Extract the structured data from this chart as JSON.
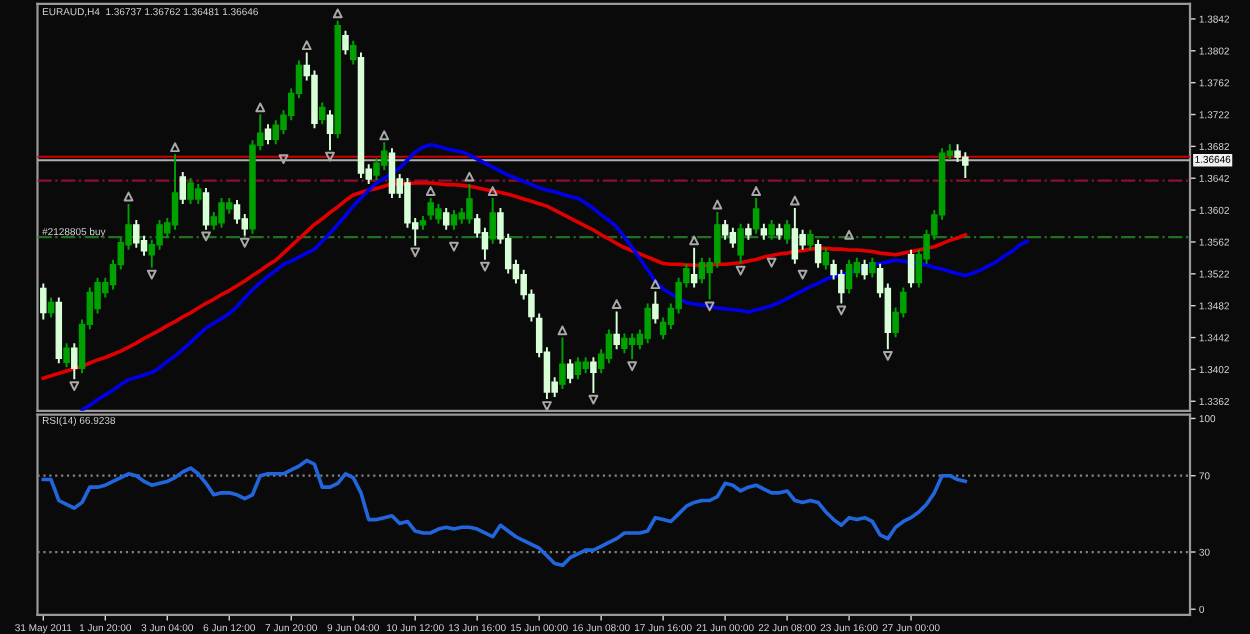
{
  "chart_data": [
    {
      "type": "candlestick",
      "title": "EURAUD,H4  1.36737 1.36762 1.36481 1.36646",
      "categories": [
        null,
        null,
        null,
        null,
        null,
        null,
        null,
        null,
        null,
        null,
        null,
        null,
        null,
        null,
        null,
        null,
        null,
        null,
        null,
        null,
        null,
        null,
        null,
        null,
        null,
        null,
        null,
        null,
        null,
        null,
        null,
        null,
        null,
        null,
        null,
        null,
        null,
        null,
        null,
        null,
        null,
        null,
        null,
        null,
        null,
        null,
        null,
        null,
        null,
        null,
        null,
        null,
        null,
        null,
        null,
        null,
        null,
        null,
        null,
        null,
        null,
        null,
        null,
        null,
        null,
        null,
        null,
        null,
        null,
        null,
        null,
        null,
        null,
        null,
        null,
        null,
        null,
        null,
        null,
        null,
        null,
        null,
        null,
        null,
        null,
        null,
        null,
        null,
        null,
        null,
        null,
        null,
        null,
        null,
        null,
        null,
        null,
        null,
        null,
        null,
        null,
        null,
        null,
        null,
        null,
        null,
        null,
        null,
        null,
        null,
        null,
        null,
        null,
        null,
        null,
        null,
        null,
        null,
        null,
        null,
        null,
        null,
        null,
        null,
        null,
        null,
        null,
        null
      ],
      "ohlc": [
        [
          1.35035,
          1.35085,
          1.3466,
          1.34735
        ],
        [
          1.34735,
          1.3491,
          1.34685,
          1.3486
        ],
        [
          1.3486,
          1.3491,
          1.3411,
          1.3416
        ],
        [
          1.3411,
          1.34335,
          1.3406,
          1.34285
        ],
        [
          1.34285,
          1.34335,
          1.3391,
          1.34035
        ],
        [
          1.34035,
          1.34635,
          1.33985,
          1.34585
        ],
        [
          1.34585,
          1.35035,
          1.34535,
          1.34985
        ],
        [
          1.34785,
          1.3516,
          1.34735,
          1.3511
        ],
        [
          1.34985,
          1.3516,
          1.34935,
          1.3511
        ],
        [
          1.35085,
          1.35385,
          1.35035,
          1.35335
        ],
        [
          1.35335,
          1.3566,
          1.35285,
          1.3561
        ],
        [
          1.35585,
          1.36085,
          1.35535,
          1.35835
        ],
        [
          1.35835,
          1.35885,
          1.3556,
          1.3561
        ],
        [
          1.35635,
          1.35685,
          1.3546,
          1.3551
        ],
        [
          1.3546,
          1.35635,
          1.3531,
          1.35585
        ],
        [
          1.35585,
          1.35885,
          1.35535,
          1.35835
        ],
        [
          1.35735,
          1.3591,
          1.35685,
          1.3586
        ],
        [
          1.35835,
          1.3671,
          1.35785,
          1.36235
        ],
        [
          1.36435,
          1.36485,
          1.3611,
          1.3616
        ],
        [
          1.3616,
          1.3641,
          1.3611,
          1.3636
        ],
        [
          1.3616,
          1.36335,
          1.3611,
          1.36285
        ],
        [
          1.36235,
          1.36285,
          1.35785,
          1.35835
        ],
        [
          1.35835,
          1.35985,
          1.35785,
          1.35935
        ],
        [
          1.3586,
          1.3616,
          1.3581,
          1.3611
        ],
        [
          1.36035,
          1.3616,
          1.35985,
          1.3611
        ],
        [
          1.36085,
          1.36135,
          1.3586,
          1.3591
        ],
        [
          1.3591,
          1.3596,
          1.3571,
          1.35785
        ],
        [
          1.35785,
          1.36885,
          1.35735,
          1.36835
        ],
        [
          1.36835,
          1.3721,
          1.36785,
          1.36985
        ],
        [
          1.37035,
          1.37085,
          1.3686,
          1.3691
        ],
        [
          1.3691,
          1.37135,
          1.3686,
          1.37085
        ],
        [
          1.37035,
          1.3726,
          1.36985,
          1.3721
        ],
        [
          1.3721,
          1.37535,
          1.3716,
          1.37485
        ],
        [
          1.37485,
          1.37885,
          1.37435,
          1.37835
        ],
        [
          1.37835,
          1.37985,
          1.3766,
          1.3771
        ],
        [
          1.3771,
          1.3776,
          1.3706,
          1.3711
        ],
        [
          1.3716,
          1.3736,
          1.3711,
          1.3731
        ],
        [
          1.3721,
          1.3726,
          1.36785,
          1.36985
        ],
        [
          1.36985,
          1.38385,
          1.36935,
          1.38335
        ],
        [
          1.3821,
          1.3826,
          1.37985,
          1.38035
        ],
        [
          1.3791,
          1.38135,
          1.3786,
          1.38085
        ],
        [
          1.37935,
          1.37985,
          1.36435,
          1.36485
        ],
        [
          1.36535,
          1.36585,
          1.3636,
          1.3641
        ],
        [
          1.3646,
          1.3666,
          1.3641,
          1.3661
        ],
        [
          1.36585,
          1.3686,
          1.36535,
          1.3676
        ],
        [
          1.36735,
          1.36785,
          1.36185,
          1.36235
        ],
        [
          1.3641,
          1.3646,
          1.36185,
          1.36235
        ],
        [
          1.3636,
          1.3641,
          1.3581,
          1.3586
        ],
        [
          1.3586,
          1.3591,
          1.35585,
          1.35785
        ],
        [
          1.35835,
          1.35935,
          1.35785,
          1.35885
        ],
        [
          1.3596,
          1.3616,
          1.3591,
          1.3611
        ],
        [
          1.3591,
          1.36085,
          1.3586,
          1.36035
        ],
        [
          1.35985,
          1.36035,
          1.35785,
          1.35835
        ],
        [
          1.35835,
          1.3601,
          1.35785,
          1.3596
        ],
        [
          1.3591,
          1.36035,
          1.3586,
          1.35985
        ],
        [
          1.3591,
          1.36335,
          1.3586,
          1.3616
        ],
        [
          1.3591,
          1.3596,
          1.35685,
          1.35735
        ],
        [
          1.35735,
          1.35785,
          1.3541,
          1.35535
        ],
        [
          1.3566,
          1.3616,
          1.3561,
          1.35985
        ],
        [
          1.35985,
          1.36035,
          1.3561,
          1.3566
        ],
        [
          1.3566,
          1.3571,
          1.35235,
          1.35285
        ],
        [
          1.35335,
          1.35385,
          1.3511,
          1.3516
        ],
        [
          1.3521,
          1.3526,
          1.3491,
          1.3496
        ],
        [
          1.3496,
          1.3501,
          1.34635,
          1.34685
        ],
        [
          1.3466,
          1.3471,
          1.34185,
          1.34235
        ],
        [
          1.34235,
          1.34285,
          1.3366,
          1.33735
        ],
        [
          1.3386,
          1.3391,
          1.33685,
          1.33735
        ],
        [
          1.33835,
          1.3441,
          1.33785,
          1.34085
        ],
        [
          1.34085,
          1.34135,
          1.3386,
          1.3391
        ],
        [
          1.3396,
          1.3416,
          1.3391,
          1.3411
        ],
        [
          1.34035,
          1.3416,
          1.33985,
          1.3411
        ],
        [
          1.3411,
          1.3416,
          1.33735,
          1.33985
        ],
        [
          1.34035,
          1.3426,
          1.33985,
          1.3421
        ],
        [
          1.3416,
          1.3451,
          1.3411,
          1.3446
        ],
        [
          1.3446,
          1.34735,
          1.34285,
          1.34335
        ],
        [
          1.34285,
          1.3446,
          1.34235,
          1.3441
        ],
        [
          1.34335,
          1.3446,
          1.3416,
          1.3441
        ],
        [
          1.34335,
          1.3451,
          1.34285,
          1.3446
        ],
        [
          1.3441,
          1.34835,
          1.3436,
          1.34785
        ],
        [
          1.34835,
          1.34985,
          1.3461,
          1.3466
        ],
        [
          1.3446,
          1.3466,
          1.3441,
          1.3461
        ],
        [
          1.34585,
          1.34835,
          1.34535,
          1.34785
        ],
        [
          1.34785,
          1.3516,
          1.34735,
          1.3511
        ],
        [
          1.3511,
          1.35335,
          1.3506,
          1.35285
        ],
        [
          1.3521,
          1.35535,
          1.3506,
          1.3511
        ],
        [
          1.3516,
          1.3541,
          1.3511,
          1.3536
        ],
        [
          1.35235,
          1.3541,
          1.3491,
          1.3536
        ],
        [
          1.3536,
          1.35985,
          1.3531,
          1.35835
        ],
        [
          1.35835,
          1.35885,
          1.3566,
          1.3571
        ],
        [
          1.35735,
          1.35785,
          1.3556,
          1.3561
        ],
        [
          1.3546,
          1.35835,
          1.3536,
          1.35785
        ],
        [
          1.35785,
          1.35835,
          1.3566,
          1.3571
        ],
        [
          1.35785,
          1.3616,
          1.35735,
          1.36035
        ],
        [
          1.35785,
          1.35835,
          1.3566,
          1.3571
        ],
        [
          1.3571,
          1.35885,
          1.3566,
          1.35835
        ],
        [
          1.35785,
          1.35835,
          1.3566,
          1.3571
        ],
        [
          1.3566,
          1.35885,
          1.3561,
          1.35835
        ],
        [
          1.35785,
          1.36035,
          1.3536,
          1.3541
        ],
        [
          1.3571,
          1.3576,
          1.35535,
          1.35585
        ],
        [
          1.35585,
          1.3576,
          1.35535,
          1.3571
        ],
        [
          1.35585,
          1.35635,
          1.3531,
          1.3536
        ],
        [
          1.35335,
          1.35535,
          1.35285,
          1.35485
        ],
        [
          1.35335,
          1.35385,
          1.3516,
          1.3521
        ],
        [
          1.3521,
          1.3526,
          1.3486,
          1.34985
        ],
        [
          1.35035,
          1.35385,
          1.34985,
          1.35335
        ],
        [
          1.35235,
          1.3541,
          1.35185,
          1.3536
        ],
        [
          1.35335,
          1.35385,
          1.3516,
          1.3521
        ],
        [
          1.35235,
          1.3541,
          1.35185,
          1.3536
        ],
        [
          1.35285,
          1.35335,
          1.34935,
          1.34985
        ],
        [
          1.35035,
          1.35085,
          1.34285,
          1.34485
        ],
        [
          1.34485,
          1.34785,
          1.34435,
          1.34735
        ],
        [
          1.34735,
          1.35035,
          1.34685,
          1.34985
        ],
        [
          1.3546,
          1.3551,
          1.3506,
          1.3511
        ],
        [
          1.3511,
          1.3551,
          1.3506,
          1.3546
        ],
        [
          1.3541,
          1.3576,
          1.3536,
          1.3571
        ],
        [
          1.3571,
          1.3601,
          1.3566,
          1.3596
        ],
        [
          1.3596,
          1.36785,
          1.3591,
          1.36735
        ],
        [
          1.3671,
          1.36835,
          1.3666,
          1.3676
        ],
        [
          1.3676,
          1.36835,
          1.36635,
          1.36685
        ],
        [
          1.36685,
          1.36735,
          1.36435,
          1.36585
        ],
        null,
        null,
        null,
        null,
        null,
        null,
        null,
        null
      ],
      "colors": [
        "#d8ffd8",
        "#00a000",
        "#d8ffd8",
        "#00a000",
        "#d8ffd8",
        "#00a000",
        "#00a000",
        "#00a000",
        "#00a000",
        "#00a000",
        "#00a000",
        "#00a000",
        "#d8ffd8",
        "#d8ffd8",
        "#00a000",
        "#00a000",
        "#00a000",
        "#00a000",
        "#d8ffd8",
        "#00a000",
        "#00a000",
        "#d8ffd8",
        "#00a000",
        "#00a000",
        "#00a000",
        "#d8ffd8",
        "#d8ffd8",
        "#00a000",
        "#00a000",
        "#d8ffd8",
        "#00a000",
        "#00a000",
        "#00a000",
        "#00a000",
        "#d8ffd8",
        "#d8ffd8",
        "#00a000",
        "#d8ffd8",
        "#00a000",
        "#d8ffd8",
        "#00a000",
        "#d8ffd8",
        "#d8ffd8",
        "#00a000",
        "#00a000",
        "#d8ffd8",
        "#d8ffd8",
        "#d8ffd8",
        "#d8ffd8",
        "#00a000",
        "#00a000",
        "#00a000",
        "#d8ffd8",
        "#00a000",
        "#00a000",
        "#00a000",
        "#d8ffd8",
        "#d8ffd8",
        "#00a000",
        "#d8ffd8",
        "#d8ffd8",
        "#d8ffd8",
        "#d8ffd8",
        "#d8ffd8",
        "#d8ffd8",
        "#d8ffd8",
        "#d8ffd8",
        "#00a000",
        "#d8ffd8",
        "#00a000",
        "#00a000",
        "#d8ffd8",
        "#00a000",
        "#00a000",
        "#d8ffd8",
        "#00a000",
        "#00a000",
        "#00a000",
        "#00a000",
        "#d8ffd8",
        "#00a000",
        "#00a000",
        "#00a000",
        "#00a000",
        "#d8ffd8",
        "#00a000",
        "#00a000",
        "#00a000",
        "#d8ffd8",
        "#d8ffd8",
        "#00a000",
        "#d8ffd8",
        "#00a000",
        "#d8ffd8",
        "#00a000",
        "#d8ffd8",
        "#00a000",
        "#d8ffd8",
        "#d8ffd8",
        "#00a000",
        "#d8ffd8",
        "#00a000",
        "#d8ffd8",
        "#d8ffd8",
        "#00a000",
        "#00a000",
        "#d8ffd8",
        "#00a000",
        "#d8ffd8",
        "#d8ffd8",
        "#00a000",
        "#00a000",
        "#d8ffd8",
        "#00a000",
        "#00a000",
        "#00a000",
        "#00a000",
        "#00a000",
        "#d8ffd8",
        "#d8ffd8",
        null,
        null,
        null,
        null,
        null,
        null,
        null,
        null
      ],
      "series": [
        {
          "type": "line",
          "color": "#e00000",
          "values": [
            1.3391,
            1.3394,
            1.3397,
            1.34,
            1.3403,
            1.3406,
            1.341,
            1.3414,
            1.3417,
            1.3421,
            1.3425,
            1.343,
            1.3435,
            1.3441,
            1.3446,
            1.3451,
            1.3457,
            1.3462,
            1.3468,
            1.3473,
            1.3479,
            1.3485,
            1.349,
            1.3496,
            1.3501,
            1.3507,
            1.3513,
            1.352,
            1.3526,
            1.3533,
            1.3539,
            1.3548,
            1.3557,
            1.3566,
            1.3575,
            1.3584,
            1.3591,
            1.3599,
            1.3606,
            1.3614,
            1.3621,
            1.3624,
            1.3627,
            1.3629,
            1.3632,
            1.3635,
            1.3635,
            1.3635,
            1.3636,
            1.3636,
            1.3636,
            1.3635,
            1.3634,
            1.3634,
            1.3633,
            1.3632,
            1.363,
            1.3628,
            1.3626,
            1.3624,
            1.3622,
            1.3619,
            1.3616,
            1.3613,
            1.361,
            1.3607,
            1.3602,
            1.3597,
            1.3592,
            1.3587,
            1.3582,
            1.3577,
            1.3571,
            1.3566,
            1.356,
            1.3555,
            1.3551,
            1.3547,
            1.3543,
            1.3539,
            1.3535,
            1.3534,
            1.3534,
            1.3533,
            1.3533,
            1.3532,
            1.3533,
            1.3534,
            1.3534,
            1.3535,
            1.3536,
            1.3538,
            1.354,
            1.3543,
            1.3545,
            1.3547,
            1.3548,
            1.355,
            1.3551,
            1.3553,
            1.3554,
            1.3554,
            1.3553,
            1.3553,
            1.3552,
            1.3552,
            1.3551,
            1.355,
            1.3548,
            1.3547,
            1.3546,
            1.3548,
            1.355,
            1.3552,
            1.3554,
            1.3556,
            1.356,
            1.3564,
            1.3567,
            1.3571,
            null,
            null,
            null,
            null,
            null,
            null,
            null,
            null
          ]
        },
        {
          "type": "line",
          "color": "#0000e8",
          "values": [
            null,
            null,
            null,
            null,
            null,
            1.3351,
            1.3357,
            1.3364,
            1.337,
            1.3376,
            1.3383,
            1.3389,
            1.3392,
            1.3395,
            1.3398,
            1.3404,
            1.3412,
            1.3419,
            1.3427,
            1.3436,
            1.3445,
            1.3454,
            1.346,
            1.3466,
            1.3472,
            1.3481,
            1.3492,
            1.3502,
            1.3511,
            1.3519,
            1.3526,
            1.3534,
            1.3538,
            1.3543,
            1.3548,
            1.3553,
            1.3563,
            1.3573,
            1.3584,
            1.3595,
            1.3607,
            1.3617,
            1.3627,
            1.3636,
            1.3642,
            1.3648,
            1.3655,
            1.3665,
            1.3675,
            1.3681,
            1.3684,
            1.3682,
            1.3679,
            1.3677,
            1.3675,
            1.3671,
            1.3666,
            1.3661,
            1.3656,
            1.3651,
            1.3646,
            1.3642,
            1.3638,
            1.3634,
            1.363,
            1.3627,
            1.3625,
            1.3622,
            1.3619,
            1.3617,
            1.3611,
            1.3604,
            1.3596,
            1.3589,
            1.3581,
            1.3568,
            1.3555,
            1.3541,
            1.3527,
            1.3512,
            1.3503,
            1.3497,
            1.3491,
            1.3486,
            1.3484,
            1.3483,
            1.3481,
            1.3479,
            1.3478,
            1.3477,
            1.3476,
            1.3474,
            1.3477,
            1.3479,
            1.3482,
            1.3486,
            1.3491,
            1.3496,
            1.3501,
            1.3506,
            1.351,
            1.3515,
            1.3519,
            1.3521,
            1.3523,
            1.3527,
            1.353,
            1.3534,
            1.3535,
            1.3537,
            1.3539,
            1.3538,
            1.3536,
            1.3535,
            1.3533,
            1.353,
            1.3528,
            1.3525,
            1.3522,
            1.352,
            1.3523,
            1.3527,
            1.3532,
            1.3537,
            1.3544,
            1.355,
            1.3558,
            1.3563
          ]
        },
        {
          "type": "scatter",
          "marker": "triangle",
          "color": "#a8a8a8",
          "values": [
            null,
            null,
            null,
            null,
            null,
            null,
            null,
            null,
            null,
            null,
            null,
            1.3619,
            null,
            null,
            null,
            null,
            null,
            1.3681,
            null,
            null,
            null,
            null,
            null,
            null,
            null,
            null,
            null,
            null,
            1.3731,
            null,
            null,
            null,
            null,
            null,
            1.3809,
            null,
            null,
            null,
            1.3849,
            null,
            null,
            null,
            null,
            null,
            1.3696,
            null,
            null,
            null,
            null,
            null,
            1.3626,
            null,
            null,
            null,
            null,
            1.3644,
            null,
            null,
            1.3626,
            null,
            null,
            null,
            null,
            null,
            null,
            null,
            null,
            1.3451,
            null,
            null,
            null,
            null,
            null,
            null,
            1.3484,
            null,
            null,
            null,
            null,
            1.3509,
            null,
            null,
            null,
            null,
            1.3564,
            null,
            null,
            1.3609,
            null,
            null,
            null,
            null,
            1.3626,
            null,
            null,
            null,
            null,
            1.3614,
            null,
            null,
            null,
            null,
            null,
            null,
            1.3571,
            null,
            null,
            null,
            null,
            null,
            null,
            null,
            null,
            null,
            null,
            null,
            null,
            null,
            null,
            null,
            null,
            null,
            null,
            null,
            null,
            null,
            null,
            null
          ]
        },
        {
          "type": "scatter",
          "marker": "triangle_down",
          "color": "#a8a8a8",
          "values": [
            null,
            null,
            null,
            null,
            1.3381,
            null,
            null,
            null,
            null,
            null,
            null,
            null,
            null,
            null,
            1.3521,
            null,
            null,
            null,
            null,
            null,
            null,
            1.3569,
            null,
            null,
            null,
            null,
            1.3561,
            null,
            null,
            null,
            null,
            1.3666,
            null,
            null,
            null,
            null,
            null,
            1.3669,
            null,
            null,
            null,
            null,
            null,
            null,
            null,
            null,
            null,
            null,
            1.3549,
            null,
            null,
            null,
            null,
            1.3556,
            null,
            null,
            null,
            1.3531,
            null,
            null,
            null,
            null,
            null,
            null,
            null,
            1.3356,
            null,
            null,
            null,
            null,
            null,
            1.3364,
            null,
            null,
            null,
            null,
            1.3406,
            null,
            null,
            null,
            null,
            null,
            null,
            null,
            null,
            null,
            1.3481,
            null,
            null,
            null,
            1.3526,
            null,
            null,
            null,
            1.3536,
            null,
            null,
            null,
            1.3521,
            null,
            null,
            null,
            null,
            1.3476,
            null,
            null,
            null,
            null,
            null,
            1.3419,
            null,
            null,
            null,
            null,
            null,
            null,
            null,
            null,
            null,
            null,
            null,
            null,
            null,
            null,
            null,
            null,
            null,
            null
          ]
        }
      ],
      "ref_lines": [
        {
          "axis": "y",
          "value": 1.3669,
          "color": "#d00000",
          "line_style": "solid"
        },
        {
          "axis": "y",
          "value": 1.36646,
          "label": "1.36646",
          "color": "#b0b0b0",
          "line_style": "solid"
        },
        {
          "axis": "y",
          "value": 1.3639,
          "color": "#8a1030",
          "line_style": "dashdot"
        },
        {
          "axis": "y",
          "value": 1.3568,
          "label": "#2128805 buy",
          "color": "#207020",
          "line_style": "dashdot"
        }
      ],
      "ylim": [
        1.335,
        1.3861
      ],
      "yticks": [
        1.3362,
        1.3402,
        1.3442,
        1.3482,
        1.3522,
        1.3562,
        1.3602,
        1.3642,
        1.3682,
        1.3722,
        1.3762,
        1.3802,
        1.3842
      ],
      "tick_labels": "y",
      "grid": false
    },
    {
      "type": "line",
      "annotations": [
        "RSI(14) 66.9238"
      ],
      "categories": [
        "31 May 2011",
        null,
        null,
        null,
        null,
        null,
        null,
        null,
        "1 Jun 20:00",
        null,
        null,
        null,
        null,
        null,
        null,
        null,
        "3 Jun 04:00",
        null,
        null,
        null,
        null,
        null,
        null,
        null,
        "6 Jun 12:00",
        null,
        null,
        null,
        null,
        null,
        null,
        null,
        "7 Jun 20:00",
        null,
        null,
        null,
        null,
        null,
        null,
        null,
        "9 Jun 04:00",
        null,
        null,
        null,
        null,
        null,
        null,
        null,
        "10 Jun 12:00",
        null,
        null,
        null,
        null,
        null,
        null,
        null,
        "13 Jun 16:00",
        null,
        null,
        null,
        null,
        null,
        null,
        null,
        "15 Jun 00:00",
        null,
        null,
        null,
        null,
        null,
        null,
        null,
        "16 Jun 08:00",
        null,
        null,
        null,
        null,
        null,
        null,
        null,
        "17 Jun 16:00",
        null,
        null,
        null,
        null,
        null,
        null,
        null,
        "21 Jun 00:00",
        null,
        null,
        null,
        null,
        null,
        null,
        null,
        "22 Jun 08:00",
        null,
        null,
        null,
        null,
        null,
        null,
        null,
        "23 Jun 16:00",
        null,
        null,
        null,
        null,
        null,
        null,
        null,
        "27 Jun 00:00",
        null,
        null,
        null,
        null,
        null,
        null,
        null,
        null,
        null,
        null,
        null,
        null,
        null,
        null,
        null
      ],
      "series": [
        {
          "color": "#2266dd",
          "values": [
            68,
            68,
            57,
            55,
            53,
            56,
            64,
            64,
            65,
            67,
            69,
            71,
            70,
            67,
            65,
            66,
            67,
            69,
            72,
            74,
            71,
            66,
            60,
            61,
            61,
            60,
            58,
            60,
            70,
            71,
            71,
            71,
            73,
            75,
            78,
            76,
            64,
            64,
            66,
            71,
            69,
            61,
            47,
            47,
            48,
            49,
            45,
            46,
            41,
            40,
            40,
            42,
            43,
            42,
            43,
            43,
            42,
            40,
            38,
            44,
            41,
            38,
            36,
            34,
            32,
            28,
            24,
            23,
            27,
            29,
            31,
            31,
            33,
            35,
            37,
            40,
            40,
            40,
            41,
            48,
            47,
            46,
            50,
            54,
            56,
            57,
            57,
            59,
            66,
            65,
            62,
            64,
            65,
            63,
            61,
            61,
            62,
            57,
            56,
            57,
            56,
            51,
            47,
            44,
            48,
            47,
            48,
            46,
            39,
            37,
            43,
            46,
            48,
            51,
            55,
            61,
            70,
            70,
            68,
            67,
            null,
            null,
            null,
            null,
            null,
            null,
            null,
            null
          ]
        }
      ],
      "ref_lines": [
        {
          "axis": "y",
          "value": 70,
          "color": "#808080",
          "line_style": "dotted"
        },
        {
          "axis": "y",
          "value": 30,
          "color": "#808080",
          "line_style": "dotted"
        }
      ],
      "ylim": [
        -3,
        102
      ],
      "yticks": [
        0,
        30,
        70,
        100
      ],
      "grid": false
    }
  ]
}
